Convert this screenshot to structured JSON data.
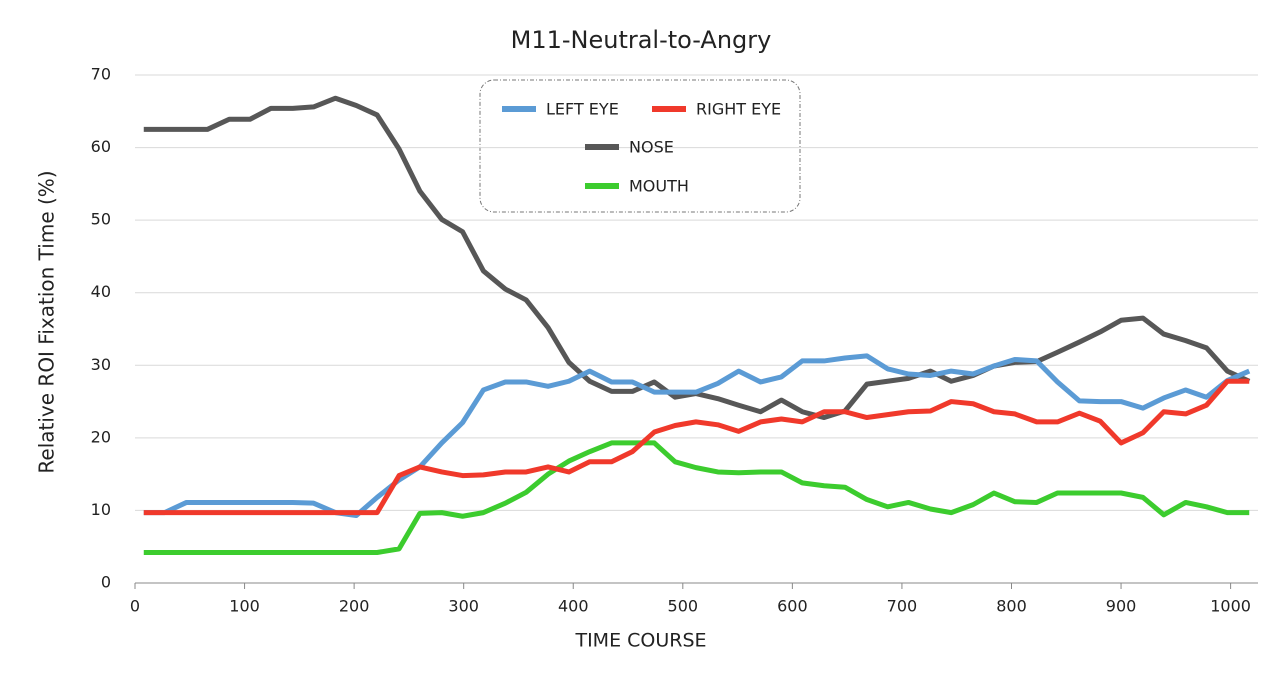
{
  "chart_data": {
    "type": "line",
    "title": "M11-Neutral-to-Angry",
    "x_label": "TIME  COURSE",
    "y_label": "Relative  ROI  Fixation  Time  (%)",
    "x": [
      8,
      27,
      47,
      66,
      86,
      105,
      124,
      144,
      163,
      183,
      202,
      221,
      241,
      260,
      280,
      299,
      318,
      338,
      357,
      377,
      396,
      415,
      435,
      454,
      474,
      493,
      512,
      532,
      551,
      571,
      590,
      609,
      629,
      648,
      668,
      687,
      706,
      726,
      745,
      765,
      784,
      803,
      823,
      842,
      862,
      881,
      900,
      920,
      939,
      959,
      978,
      997,
      1017
    ],
    "series": [
      {
        "name": "LEFT EYE",
        "color": "#5b9bd5",
        "values": [
          9.7,
          9.7,
          11.1,
          11.1,
          11.1,
          11.1,
          11.1,
          11.1,
          11,
          9.7,
          9.3,
          11.8,
          14.2,
          16,
          19.3,
          22.1,
          26.6,
          27.7,
          27.7,
          27.1,
          27.8,
          29.2,
          27.7,
          27.7,
          26.3,
          26.3,
          26.3,
          27.5,
          29.2,
          27.7,
          28.4,
          30.6,
          30.6,
          31,
          31.3,
          29.5,
          28.8,
          28.6,
          29.2,
          28.8,
          29.9,
          30.8,
          30.6,
          27.7,
          25.1,
          25,
          25,
          24.1,
          25.5,
          26.6,
          25.6,
          27.9,
          29.2
        ]
      },
      {
        "name": "RIGHT EYE",
        "color": "#f0392b",
        "values": [
          9.7,
          9.7,
          9.7,
          9.7,
          9.7,
          9.7,
          9.7,
          9.7,
          9.7,
          9.7,
          9.7,
          9.7,
          14.8,
          16,
          15.3,
          14.8,
          14.9,
          15.3,
          15.3,
          16,
          15.3,
          16.7,
          16.7,
          18.1,
          20.8,
          21.7,
          22.2,
          21.8,
          20.9,
          22.2,
          22.6,
          22.2,
          23.6,
          23.6,
          22.8,
          23.2,
          23.6,
          23.7,
          25,
          24.7,
          23.6,
          23.3,
          22.2,
          22.2,
          23.4,
          22.3,
          19.3,
          20.7,
          23.6,
          23.3,
          24.5,
          27.8,
          27.8
        ]
      },
      {
        "name": "NOSE",
        "color": "#575757",
        "values": [
          62.5,
          62.5,
          62.5,
          62.5,
          63.9,
          63.9,
          65.4,
          65.4,
          65.6,
          66.8,
          65.8,
          64.5,
          59.8,
          54,
          50.1,
          48.4,
          43,
          40.5,
          39,
          35.2,
          30.4,
          27.8,
          26.4,
          26.4,
          27.7,
          25.6,
          26.1,
          25.4,
          24.5,
          23.6,
          25.2,
          23.6,
          22.8,
          23.7,
          27.4,
          27.8,
          28.2,
          29.2,
          27.8,
          28.6,
          29.9,
          30.4,
          30.5,
          31.8,
          33.2,
          34.6,
          36.2,
          36.5,
          34.3,
          33.4,
          32.4,
          29.2,
          27.8
        ]
      },
      {
        "name": "MOUTH",
        "color": "#3ccc2e",
        "values": [
          4.2,
          4.2,
          4.2,
          4.2,
          4.2,
          4.2,
          4.2,
          4.2,
          4.2,
          4.2,
          4.2,
          4.2,
          4.7,
          9.6,
          9.7,
          9.2,
          9.7,
          11,
          12.5,
          15,
          16.8,
          18.1,
          19.3,
          19.3,
          19.3,
          16.7,
          15.9,
          15.3,
          15.2,
          15.3,
          15.3,
          13.8,
          13.4,
          13.2,
          11.5,
          10.5,
          11.1,
          10.2,
          9.7,
          10.8,
          12.4,
          11.2,
          11.1,
          12.4,
          12.4,
          12.4,
          12.4,
          11.8,
          9.4,
          11.1,
          10.5,
          9.7,
          9.7
        ]
      }
    ],
    "xlim": [
      0,
      1025
    ],
    "ylim": [
      0,
      70
    ],
    "xticks": [
      0,
      100,
      200,
      300,
      400,
      500,
      600,
      700,
      800,
      900,
      1000
    ],
    "yticks": [
      0,
      10,
      20,
      30,
      40,
      50,
      60,
      70
    ],
    "grid": true
  }
}
